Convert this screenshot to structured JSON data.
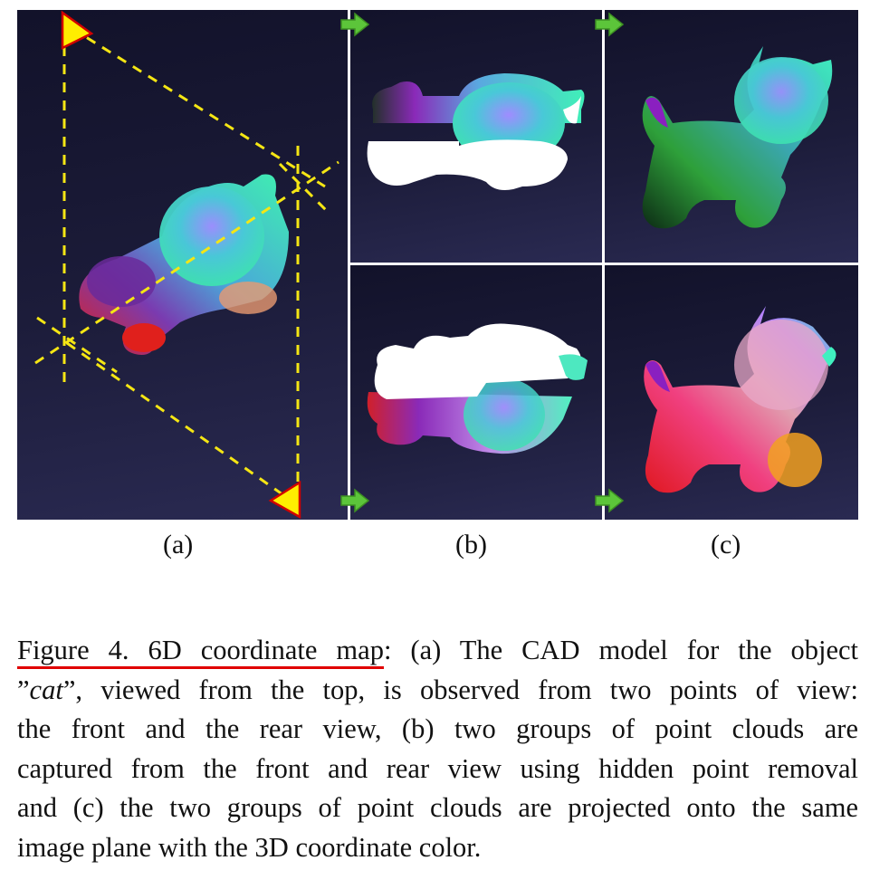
{
  "figure": {
    "panels": {
      "a": "(a)",
      "b": "(b)",
      "c": "(c)"
    },
    "colors": {
      "background": "#1a1a36",
      "guides": "#f5e614",
      "marker": "#ffee00",
      "marker_outline": "#d00000",
      "arrow": "#5cc53a",
      "underline": "#e00000"
    }
  },
  "caption": {
    "figure_label": "Figure 4. 6D coordinate map",
    "line1_rest": ": (a) The CAD model for the object",
    "line2_open_quote": "”",
    "line2_object": "cat",
    "line2_rest": "”, viewed from the top, is observed from two points of view:",
    "line3": "the front and the rear view, (b) two groups of point clouds are",
    "line4": "captured from the front and rear view using hidden point removal",
    "line5": "and (c) the two groups of point clouds are projected onto the same",
    "line6": "image plane with the 3D coordinate color."
  }
}
